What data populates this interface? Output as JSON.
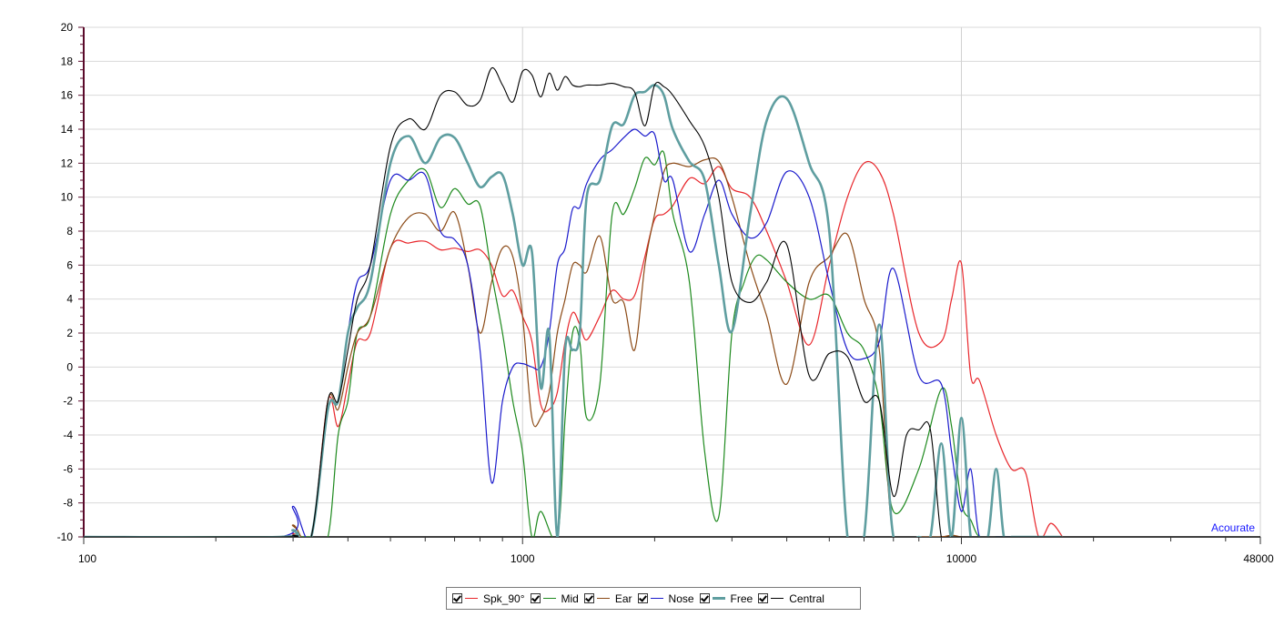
{
  "chart_data": {
    "type": "line",
    "x_scale": "log",
    "xlim": [
      100,
      48000
    ],
    "ylim": [
      -10,
      20
    ],
    "x_ticks": [
      "100",
      "1000",
      "10000",
      "48000"
    ],
    "y_ticks": [
      "20",
      "18",
      "16",
      "14",
      "12",
      "10",
      "8",
      "6",
      "4",
      "2",
      "0",
      "-2",
      "-4",
      "-6",
      "-8",
      "-10"
    ],
    "grid": true,
    "legend_position": "bottom-center",
    "watermark": "Acourate",
    "series": [
      {
        "name": "Spk_90°",
        "color": "#e8262b",
        "width": 1.2,
        "x": [
          100,
          280,
          300,
          330,
          360,
          380,
          400,
          420,
          450,
          500,
          550,
          600,
          650,
          700,
          750,
          800,
          850,
          900,
          950,
          1000,
          1050,
          1100,
          1150,
          1200,
          1250,
          1300,
          1350,
          1400,
          1500,
          1600,
          1700,
          1800,
          1900,
          2000,
          2100,
          2200,
          2400,
          2600,
          2800,
          3000,
          3300,
          3600,
          4000,
          4500,
          5000,
          5500,
          6000,
          6500,
          7000,
          8000,
          9000,
          9500,
          10000,
          10500,
          11000,
          12000,
          13000,
          14000,
          15000,
          16000,
          17000
        ],
        "y": [
          -10,
          -10,
          -9.8,
          -10,
          -2,
          -3.5,
          -1,
          1.5,
          2,
          7,
          7.3,
          7.4,
          6.9,
          7,
          6.8,
          6.9,
          6,
          4.2,
          4.5,
          3,
          1.5,
          -2.2,
          -2.5,
          -1.5,
          1.5,
          3.2,
          2.5,
          1.6,
          3,
          4.5,
          4,
          4.2,
          6.5,
          8.7,
          9,
          9.5,
          11.1,
          10.8,
          11.8,
          10.5,
          10,
          8,
          5,
          1.3,
          6,
          10,
          12,
          11.5,
          9,
          2,
          1.5,
          4,
          6.1,
          -0.5,
          -0.8,
          -4,
          -6,
          -6.2,
          -10,
          -9.2,
          -10
        ]
      },
      {
        "name": "Mid",
        "color": "#1e8a1e",
        "width": 1.2,
        "x": [
          100,
          280,
          300,
          330,
          360,
          380,
          400,
          420,
          450,
          500,
          550,
          600,
          650,
          700,
          750,
          800,
          850,
          900,
          950,
          1000,
          1050,
          1100,
          1200,
          1250,
          1300,
          1350,
          1400,
          1500,
          1600,
          1700,
          1800,
          1900,
          2000,
          2100,
          2200,
          2400,
          2600,
          2800,
          3000,
          3200,
          3400,
          3600,
          4000,
          4500,
          5000,
          5500,
          6000,
          6500,
          7000,
          8000,
          9000,
          9500,
          10000,
          10500,
          11000,
          12000,
          13000,
          14000
        ],
        "y": [
          -10,
          -10,
          -10,
          -10,
          -10,
          -4,
          -2,
          2,
          3,
          9,
          11,
          11.6,
          9.4,
          10.5,
          9.6,
          9.5,
          5.5,
          2,
          -2,
          -5,
          -10,
          -8.5,
          -10,
          -3,
          2,
          1.5,
          -3,
          -1,
          9,
          9,
          10.5,
          12.3,
          11.9,
          12.6,
          9,
          5,
          -5,
          -8.8,
          2,
          5,
          6.5,
          6.3,
          5,
          4,
          4.2,
          2,
          1,
          -2,
          -8.5,
          -6,
          -1.3,
          -3.5,
          -8,
          -9,
          -10,
          -10,
          -10,
          -10
        ]
      },
      {
        "name": "Ear",
        "color": "#8b4a16",
        "width": 1.2,
        "x": [
          100,
          280,
          300,
          330,
          360,
          380,
          400,
          420,
          450,
          500,
          550,
          600,
          650,
          700,
          750,
          800,
          850,
          900,
          950,
          1000,
          1050,
          1100,
          1150,
          1200,
          1250,
          1300,
          1350,
          1400,
          1500,
          1600,
          1700,
          1800,
          1900,
          2000,
          2100,
          2200,
          2400,
          2600,
          2800,
          3000,
          3300,
          3600,
          4000,
          4500,
          5000,
          5500,
          6000,
          6500,
          7000,
          8000,
          9000,
          9500,
          10000,
          10500
        ],
        "y": [
          -10,
          -10,
          -9.3,
          -10,
          -2,
          -2.5,
          0,
          2,
          3,
          7,
          8.8,
          9,
          8,
          9.1,
          6,
          2,
          5,
          7,
          6.5,
          3,
          -3,
          -3,
          -1.5,
          2,
          4,
          6,
          6,
          5.6,
          7.7,
          4,
          3.8,
          1,
          6,
          9,
          11.5,
          12,
          11.8,
          12.2,
          12.1,
          10,
          6,
          3,
          -1,
          5,
          6.5,
          7.8,
          4,
          1,
          -10,
          -10,
          -10,
          -9.9,
          -10,
          -10
        ]
      },
      {
        "name": "Nose",
        "color": "#1a1acc",
        "width": 1.2,
        "x": [
          100,
          280,
          300,
          330,
          360,
          380,
          400,
          420,
          450,
          500,
          550,
          600,
          650,
          700,
          750,
          800,
          850,
          900,
          950,
          1000,
          1050,
          1100,
          1150,
          1200,
          1250,
          1300,
          1350,
          1400,
          1500,
          1600,
          1700,
          1800,
          1900,
          2000,
          2100,
          2200,
          2400,
          2600,
          2800,
          3000,
          3300,
          3600,
          4000,
          4500,
          5000,
          5500,
          6000,
          6500,
          7000,
          8000,
          9000,
          9500,
          10000,
          10500,
          11000,
          12000,
          13000,
          14000,
          15000
        ],
        "y": [
          -10,
          -10,
          -8.2,
          -10,
          -2.5,
          -2,
          2,
          5,
          6,
          11,
          11,
          11.3,
          8,
          7.5,
          6,
          1,
          -6.8,
          -2,
          0,
          0.2,
          0,
          0,
          2,
          6,
          7,
          9.3,
          9.4,
          10.8,
          12.2,
          12.8,
          13.5,
          14,
          13.6,
          13.7,
          11,
          11,
          6.8,
          9,
          11,
          9,
          7.6,
          8.5,
          11.5,
          10,
          5,
          1,
          0.5,
          1.5,
          5.8,
          -0.5,
          -1,
          -5,
          -8.5,
          -6,
          -10,
          -10,
          -10,
          -10,
          -10
        ]
      },
      {
        "name": "Free",
        "color": "#5f9ea0",
        "width": 2.6,
        "x": [
          100,
          280,
          300,
          330,
          360,
          380,
          400,
          420,
          450,
          500,
          550,
          600,
          650,
          700,
          750,
          800,
          850,
          900,
          950,
          1000,
          1050,
          1100,
          1150,
          1200,
          1250,
          1300,
          1350,
          1400,
          1500,
          1600,
          1700,
          1800,
          1900,
          2000,
          2100,
          2200,
          2400,
          2600,
          2800,
          3000,
          3300,
          3600,
          4000,
          4500,
          5000,
          5500,
          6000,
          6500,
          7000,
          8000,
          8500,
          9000,
          9500,
          10000,
          10500,
          11000,
          11500,
          12000,
          12500,
          13000,
          13500,
          14000,
          15000,
          16000,
          17000
        ],
        "y": [
          -10,
          -10,
          -9.6,
          -10,
          -2.5,
          -2,
          2,
          3.5,
          5,
          12,
          13.6,
          12,
          13.5,
          13.5,
          12,
          10.6,
          11.2,
          11.3,
          9,
          6,
          6.8,
          -1.2,
          2,
          -10,
          1,
          1,
          2,
          10,
          11,
          14.2,
          14.3,
          16,
          16.2,
          16.6,
          16,
          14,
          12.1,
          11,
          6,
          2.1,
          9,
          14.5,
          15.8,
          12,
          8,
          -10,
          -10,
          2.5,
          -10,
          -10,
          -10,
          -4.5,
          -10,
          -3,
          -10,
          -10,
          -10,
          -6,
          -10,
          -10,
          -10,
          -10,
          -10,
          -10,
          -10
        ]
      },
      {
        "name": "Central",
        "color": "#000000",
        "width": 1.1,
        "x": [
          100,
          280,
          300,
          330,
          360,
          380,
          400,
          420,
          450,
          500,
          550,
          600,
          650,
          700,
          750,
          800,
          850,
          900,
          950,
          1000,
          1050,
          1100,
          1150,
          1200,
          1250,
          1300,
          1350,
          1400,
          1500,
          1600,
          1700,
          1800,
          1900,
          2000,
          2100,
          2200,
          2400,
          2600,
          2800,
          3000,
          3300,
          3600,
          4000,
          4500,
          5000,
          5500,
          6000,
          6500,
          7000,
          7500,
          8000,
          8500,
          9000,
          9500,
          10000,
          10500,
          11000,
          11500,
          12000,
          12500,
          13000,
          13500,
          14000,
          15000,
          16000,
          17000
        ],
        "y": [
          -10,
          -10,
          -9.9,
          -10,
          -2,
          -2,
          1,
          4,
          6,
          13,
          14.6,
          14,
          16,
          16.2,
          15.4,
          15.7,
          17.6,
          16.6,
          15.6,
          17.4,
          17.2,
          15.9,
          17.3,
          16.3,
          17.1,
          16.6,
          16.5,
          16.6,
          16.6,
          16.7,
          16.5,
          16.2,
          14.2,
          16.6,
          16.5,
          16,
          14.5,
          13,
          10,
          5,
          3.8,
          5,
          7.2,
          -0.5,
          0.8,
          0.6,
          -2,
          -2,
          -7.6,
          -4,
          -3.7,
          -3.7,
          -10,
          -10,
          -10,
          -10,
          -10,
          -10,
          -10,
          -10,
          -10,
          -10,
          -10,
          -10,
          -10,
          -10
        ]
      }
    ]
  }
}
